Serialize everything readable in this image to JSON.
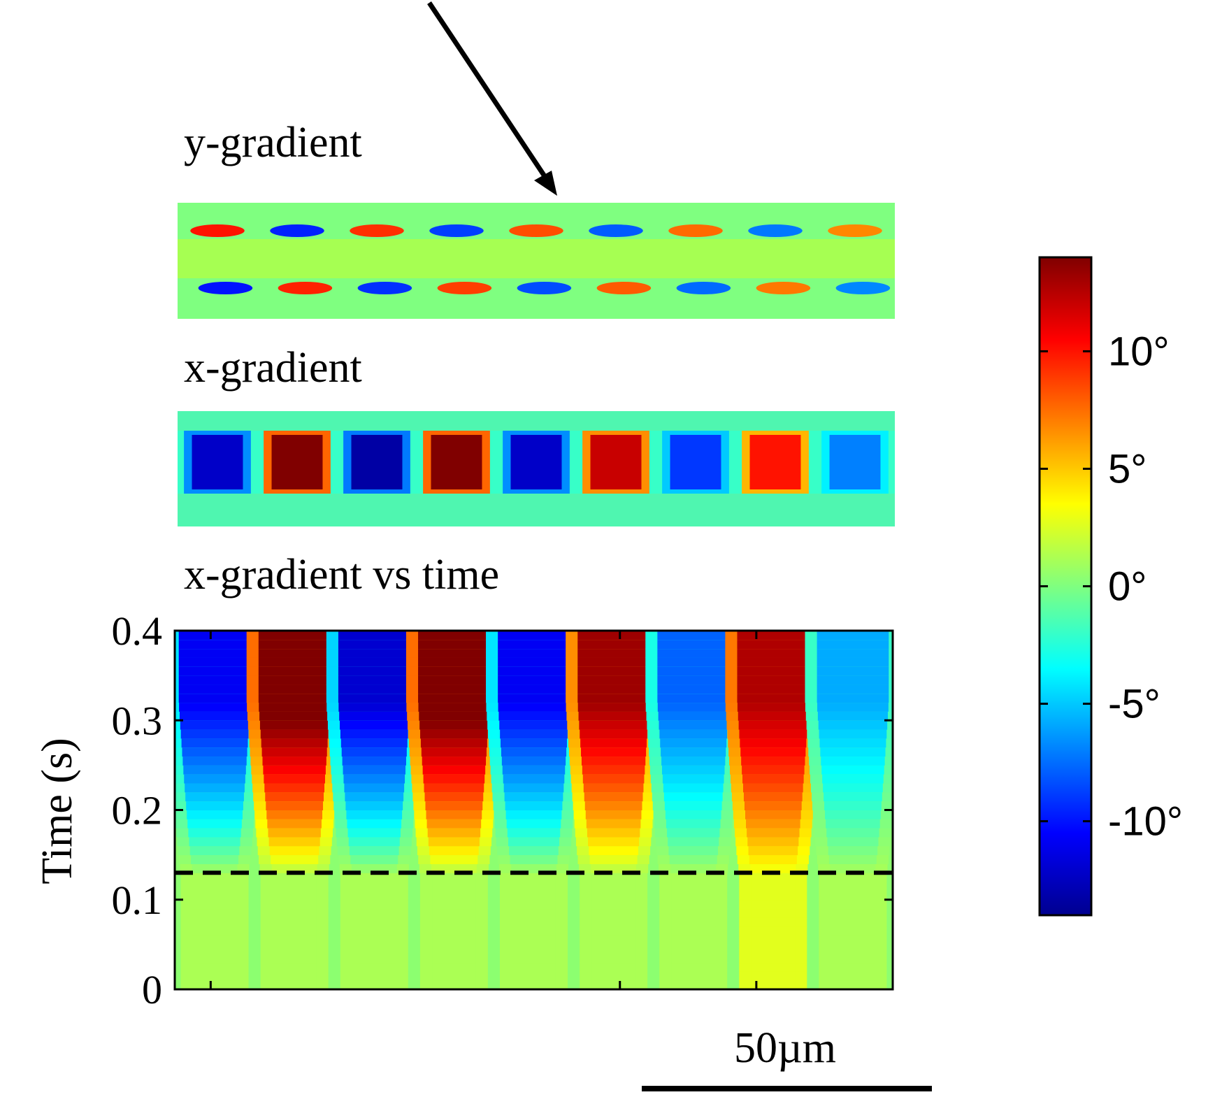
{
  "panels": {
    "y_gradient": {
      "title": "y-gradient"
    },
    "x_gradient": {
      "title": "x-gradient"
    },
    "x_vs_time": {
      "title": "x-gradient vs time"
    }
  },
  "chart_data": {
    "type": "heatmap",
    "title": "x-gradient vs time",
    "xlabel": "",
    "ylabel": "Time (s)",
    "ylim": [
      0,
      0.4
    ],
    "yticks": [
      0,
      0.1,
      0.2,
      0.3,
      0.4
    ],
    "ytick_labels": [
      "0",
      "0.1",
      "0.2",
      "0.3",
      "0.4"
    ],
    "onset_time_s": 0.13,
    "stripe_amplitudes_deg": [
      -12,
      14,
      -13,
      14,
      -12,
      12,
      -9,
      10,
      -7
    ],
    "colorbar": {
      "ticks": [
        -10,
        -5,
        0,
        5,
        10
      ],
      "tick_labels": [
        "-10°",
        "-5°",
        "0°",
        "5°",
        "10°"
      ],
      "range": [
        -14,
        14
      ],
      "colormap": "jet"
    },
    "scale_bar": {
      "label": "50µm"
    },
    "grid": false
  }
}
